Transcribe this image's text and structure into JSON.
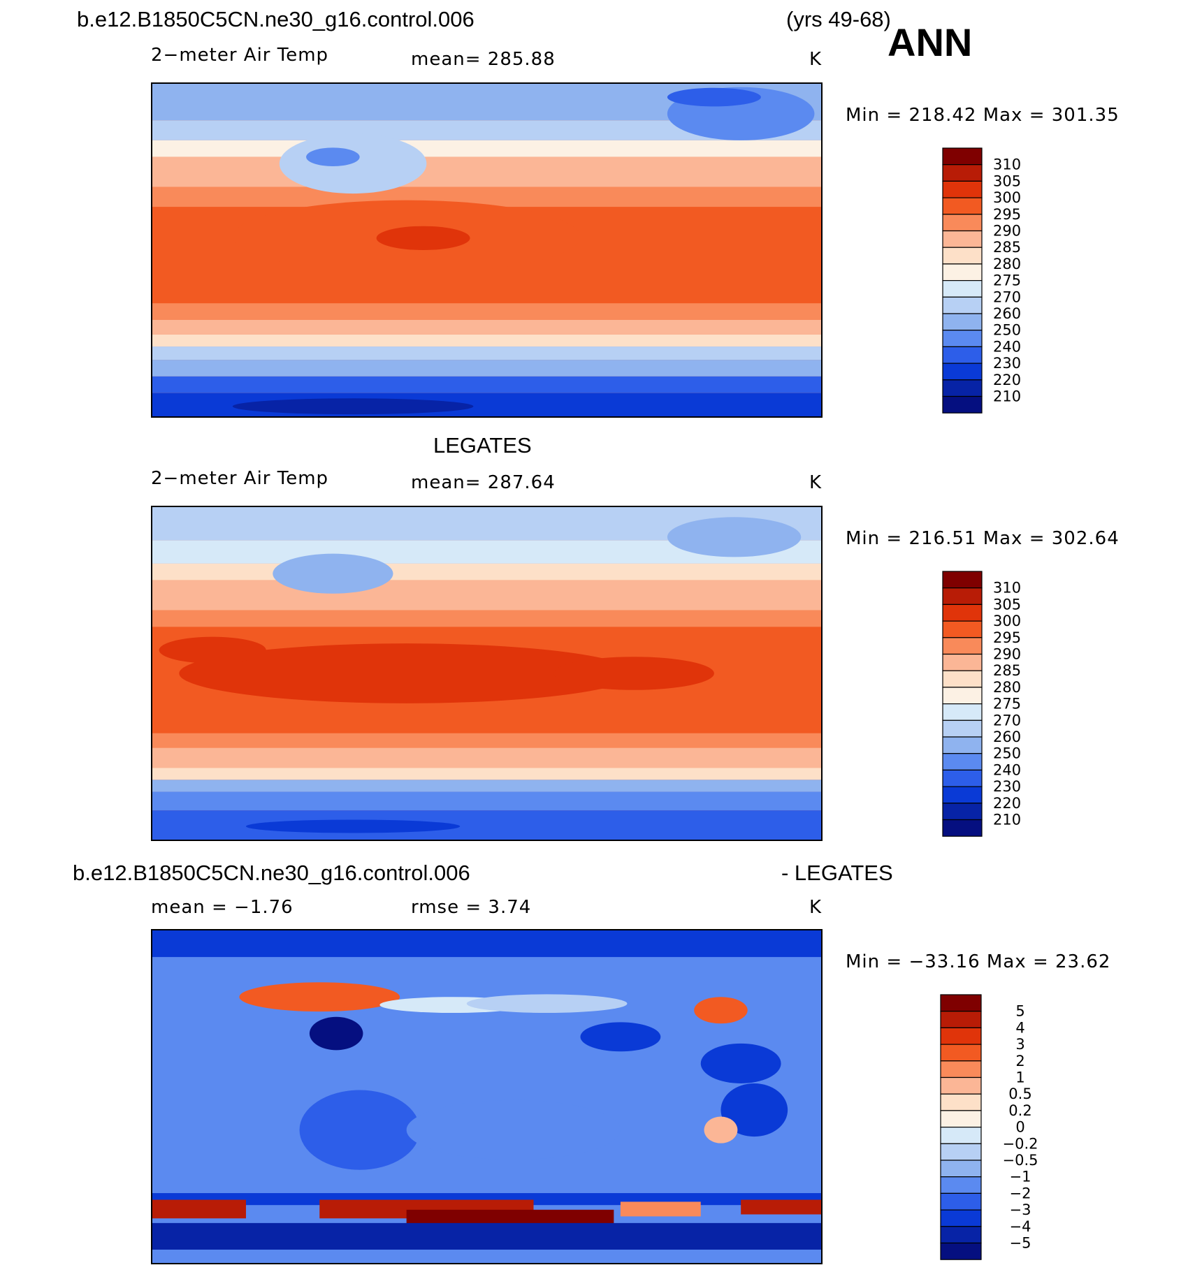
{
  "header": {
    "case_name": "b.e12.B1850C5CN.ne30_g16.control.006",
    "years": "(yrs 49-68)",
    "season": "ANN"
  },
  "panels": [
    {
      "id": "model",
      "title": "",
      "variable": "2−meter Air Temp",
      "mean_text": "mean=  285.88",
      "units": "K",
      "minmax_text": "Min  =  218.42  Max  =  301.35",
      "colorbar": {
        "labels": [
          "310",
          "305",
          "300",
          "295",
          "290",
          "285",
          "280",
          "275",
          "270",
          "260",
          "250",
          "240",
          "230",
          "220",
          "210"
        ],
        "colors": [
          "#7f0000",
          "#b81c06",
          "#e0340a",
          "#f25a22",
          "#f98a5a",
          "#fbb696",
          "#fde0c8",
          "#fcf1e4",
          "#d6e9f8",
          "#b7d0f4",
          "#8fb3ef",
          "#5b8af0",
          "#2d5ee9",
          "#0a3ad6",
          "#0723a6",
          "#050f80"
        ]
      }
    },
    {
      "id": "obs",
      "title": "LEGATES",
      "variable": "2−meter Air Temp",
      "mean_text": "mean=  287.64",
      "units": "K",
      "minmax_text": "Min  =  216.51  Max  =  302.64",
      "colorbar": {
        "labels": [
          "310",
          "305",
          "300",
          "295",
          "290",
          "285",
          "280",
          "275",
          "270",
          "260",
          "250",
          "240",
          "230",
          "220",
          "210"
        ],
        "colors": [
          "#7f0000",
          "#b81c06",
          "#e0340a",
          "#f25a22",
          "#f98a5a",
          "#fbb696",
          "#fde0c8",
          "#fcf1e4",
          "#d6e9f8",
          "#b7d0f4",
          "#8fb3ef",
          "#5b8af0",
          "#2d5ee9",
          "#0a3ad6",
          "#0723a6",
          "#050f80"
        ]
      }
    },
    {
      "id": "diff",
      "title_left": "b.e12.B1850C5CN.ne30_g16.control.006",
      "title_right": "- LEGATES",
      "mean_text": "mean  =    −1.76",
      "rmse_text": "rmse  =      3.74",
      "units": "K",
      "minmax_text": "Min  =  −33.16  Max  =    23.62",
      "colorbar": {
        "labels": [
          "5",
          "4",
          "3",
          "2",
          "1",
          "0.5",
          "0.2",
          "0",
          "−0.2",
          "−0.5",
          "−1",
          "−2",
          "−3",
          "−4",
          "−5"
        ],
        "colors": [
          "#7f0000",
          "#b81c06",
          "#e0340a",
          "#f25a22",
          "#f98a5a",
          "#fbb696",
          "#fde0c8",
          "#fcf1e4",
          "#d6e9f8",
          "#b7d0f4",
          "#8fb3ef",
          "#5b8af0",
          "#2d5ee9",
          "#0a3ad6",
          "#0723a6",
          "#050f80"
        ]
      }
    }
  ]
}
